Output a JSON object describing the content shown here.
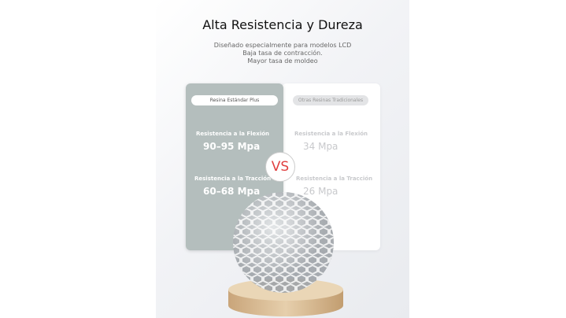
{
  "title": "Alta Resistencia y Dureza",
  "subtitle_lines": [
    "Diseñado especialmente para modelos LCD",
    "Baja tasa de contracción.",
    "Mayor tasa de moldeo"
  ],
  "left": {
    "label": "Resina Estándar Plus",
    "flex_label": "Resistencia a la Flexión",
    "flex_value": "90–95 Mpa",
    "tract_label": "Resistencia a la Tracción",
    "tract_value": "60–68 Mpa",
    "color": "#b4bebd"
  },
  "right": {
    "label": "Otras Resinas Tradicionales",
    "flex_label": "Resistencia a la Flexión",
    "flex_value": "34 Mpa",
    "tract_label": "Resistencia a la Tracción",
    "tract_value": "26 Mpa"
  },
  "vs": "VS",
  "vs_color": "#e04040"
}
